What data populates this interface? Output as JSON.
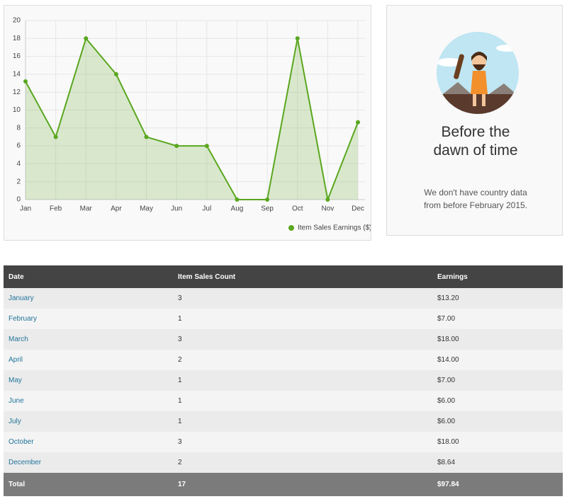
{
  "chart_data": {
    "type": "line",
    "categories": [
      "Jan",
      "Feb",
      "Mar",
      "Apr",
      "May",
      "Jun",
      "Jul",
      "Aug",
      "Sep",
      "Oct",
      "Nov",
      "Dec"
    ],
    "series": [
      {
        "name": "Item Sales Earnings ($)",
        "color": "#5aa71f",
        "values": [
          13.2,
          7,
          18,
          14,
          7,
          6,
          6,
          0,
          0,
          18,
          0,
          8.64
        ]
      }
    ],
    "ylim": [
      0,
      20
    ],
    "yticks": [
      0,
      2,
      4,
      6,
      8,
      10,
      12,
      14,
      16,
      18,
      20
    ],
    "grid": true,
    "legend": "bottom-right"
  },
  "card": {
    "title": "Before the dawn of time",
    "text": "We don't have country data from before February 2015."
  },
  "table": {
    "headers": [
      "Date",
      "Item Sales Count",
      "Earnings"
    ],
    "rows": [
      [
        "January",
        "3",
        "$13.20"
      ],
      [
        "February",
        "1",
        "$7.00"
      ],
      [
        "March",
        "3",
        "$18.00"
      ],
      [
        "April",
        "2",
        "$14.00"
      ],
      [
        "May",
        "1",
        "$7.00"
      ],
      [
        "June",
        "1",
        "$6.00"
      ],
      [
        "July",
        "1",
        "$6.00"
      ],
      [
        "October",
        "3",
        "$18.00"
      ],
      [
        "December",
        "2",
        "$8.64"
      ]
    ],
    "total": [
      "Total",
      "17",
      "$97.84"
    ]
  }
}
